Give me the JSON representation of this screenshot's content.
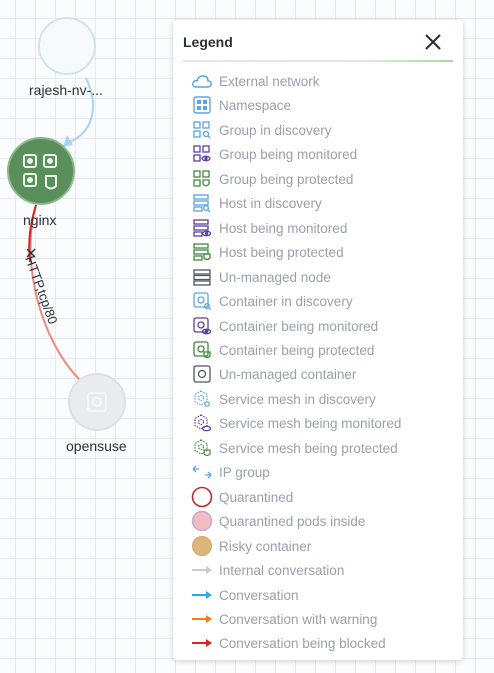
{
  "graph": {
    "nodes": [
      {
        "id": "rajesh",
        "label": "rajesh-nv-...",
        "kind": "namespace-ghost"
      },
      {
        "id": "nginx",
        "label": "nginx",
        "kind": "group-being-protected"
      },
      {
        "id": "opensuse",
        "label": "opensuse",
        "kind": "container-ghost"
      }
    ],
    "edges": [
      {
        "from": "rajesh",
        "to": "nginx",
        "label": "",
        "color": "#a9d2f2"
      },
      {
        "from": "nginx",
        "to": "opensuse",
        "label": "HTTP,tcp/80",
        "color": "#f08a7e"
      }
    ]
  },
  "legend": {
    "title": "Legend",
    "close_icon": "close-icon",
    "items": [
      {
        "label": "External network",
        "icon": "cloud-icon"
      },
      {
        "label": "Namespace",
        "icon": "namespace-icon"
      },
      {
        "label": "Group in discovery",
        "icon": "group-discovery-icon"
      },
      {
        "label": "Group being monitored",
        "icon": "group-monitored-icon"
      },
      {
        "label": "Group being protected",
        "icon": "group-protected-icon"
      },
      {
        "label": "Host in discovery",
        "icon": "host-discovery-icon"
      },
      {
        "label": "Host being monitored",
        "icon": "host-monitored-icon"
      },
      {
        "label": "Host being protected",
        "icon": "host-protected-icon"
      },
      {
        "label": "Un-managed node",
        "icon": "unmanaged-node-icon"
      },
      {
        "label": "Container in discovery",
        "icon": "container-discovery-icon"
      },
      {
        "label": "Container being monitored",
        "icon": "container-monitored-icon"
      },
      {
        "label": "Container being protected",
        "icon": "container-protected-icon"
      },
      {
        "label": "Un-managed container",
        "icon": "unmanaged-container-icon"
      },
      {
        "label": "Service mesh in discovery",
        "icon": "mesh-discovery-icon"
      },
      {
        "label": "Service mesh being monitored",
        "icon": "mesh-monitored-icon"
      },
      {
        "label": "Service mesh being protected",
        "icon": "mesh-protected-icon"
      },
      {
        "label": "IP group",
        "icon": "ip-group-icon"
      },
      {
        "label": "Quarantined",
        "icon": "quarantined-circle-icon"
      },
      {
        "label": "Quarantined pods inside",
        "icon": "quarantined-pods-circle-icon"
      },
      {
        "label": "Risky container",
        "icon": "risky-circle-icon"
      },
      {
        "label": "Internal conversation",
        "icon": "gray-arrow-icon"
      },
      {
        "label": "Conversation",
        "icon": "blue-arrow-icon"
      },
      {
        "label": "Conversation with warning",
        "icon": "orange-arrow-icon"
      },
      {
        "label": "Conversation being blocked",
        "icon": "red-arrow-icon"
      }
    ]
  },
  "colors": {
    "discovery": "#5aa6dd",
    "monitored": "#5b3fa3",
    "protected": "#3f8a3c",
    "unmanaged": "#505560",
    "quarantined": "#c0292b",
    "quarantined_fill": "#f6b9c6",
    "risky": "#dcb57a",
    "internal": "#c9ccd2",
    "conversation": "#2aa7e8",
    "warning": "#f07c1d",
    "blocked": "#d8241f"
  }
}
